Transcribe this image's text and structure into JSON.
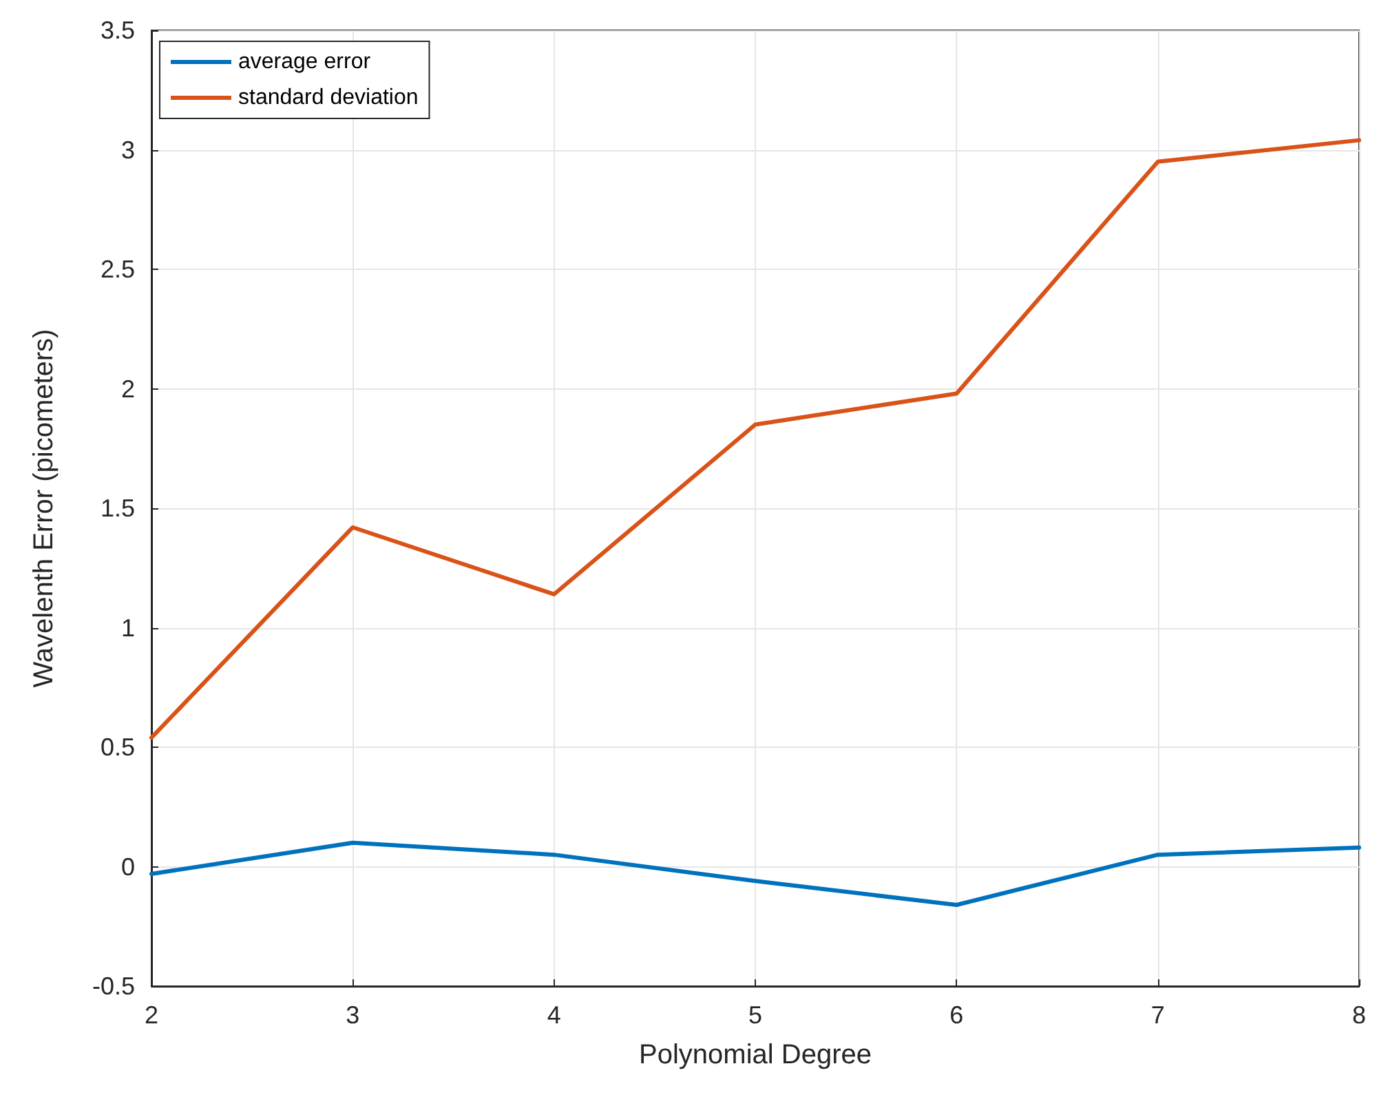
{
  "chart_data": {
    "type": "line",
    "xlabel": "Polynomial Degree",
    "ylabel": "Wavelenth Error (picometers)",
    "x": [
      2,
      3,
      4,
      5,
      6,
      7,
      8
    ],
    "series": [
      {
        "name": "average error",
        "color": "#0072bd",
        "values": [
          -0.03,
          0.1,
          0.05,
          -0.06,
          -0.16,
          0.05,
          0.08
        ]
      },
      {
        "name": "standard deviation",
        "color": "#d95319",
        "values": [
          0.54,
          1.42,
          1.14,
          1.85,
          1.98,
          2.95,
          3.04
        ]
      }
    ],
    "xlim": [
      2,
      8
    ],
    "xticks": [
      2,
      3,
      4,
      5,
      6,
      7,
      8
    ],
    "ylim": [
      -0.5,
      3.5
    ],
    "yticks": [
      -0.5,
      0,
      0.5,
      1,
      1.5,
      2,
      2.5,
      3,
      3.5
    ],
    "grid": true,
    "legend": "top left",
    "marker": "none",
    "line_style": "solid"
  }
}
